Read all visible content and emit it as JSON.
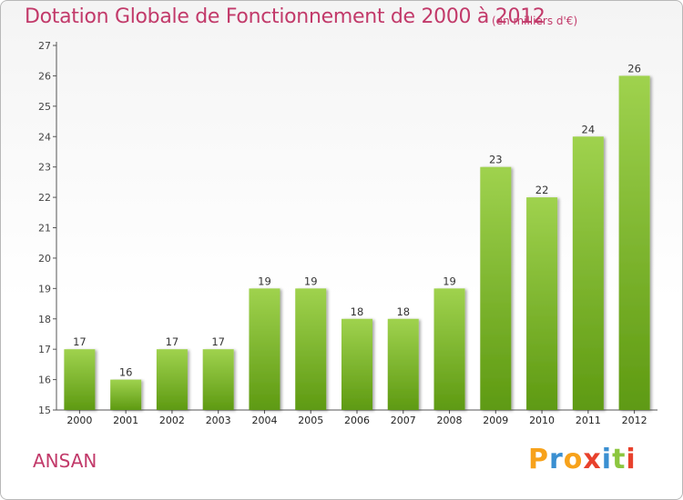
{
  "header": {
    "title": "Dotation Globale de Fonctionnement de 2000 à 2012",
    "subtitle": "(en milliers d'€)"
  },
  "footer": {
    "place": "ANSAN",
    "logo_letters": [
      "P",
      "r",
      "o",
      "x",
      "i",
      "t",
      "i"
    ],
    "logo_colors": [
      "#f7a21b",
      "#3a8fd1",
      "#f7a21b",
      "#e8412c",
      "#3a8fd1",
      "#8cc63f",
      "#e8412c"
    ]
  },
  "colors": {
    "bar_light": "#9fd24e",
    "bar_dark": "#5e9a12",
    "axis": "#555555",
    "text_accent": "#c23a6a"
  },
  "chart_data": {
    "type": "bar",
    "categories": [
      "2000",
      "2001",
      "2002",
      "2003",
      "2004",
      "2005",
      "2006",
      "2007",
      "2008",
      "2009",
      "2010",
      "2011",
      "2012"
    ],
    "values": [
      17,
      16,
      17,
      17,
      19,
      19,
      18,
      18,
      19,
      23,
      22,
      24,
      26
    ],
    "ylim": [
      15,
      27
    ],
    "yticks": [
      15,
      16,
      17,
      18,
      19,
      20,
      21,
      22,
      23,
      24,
      25,
      26,
      27
    ],
    "grid": false
  }
}
